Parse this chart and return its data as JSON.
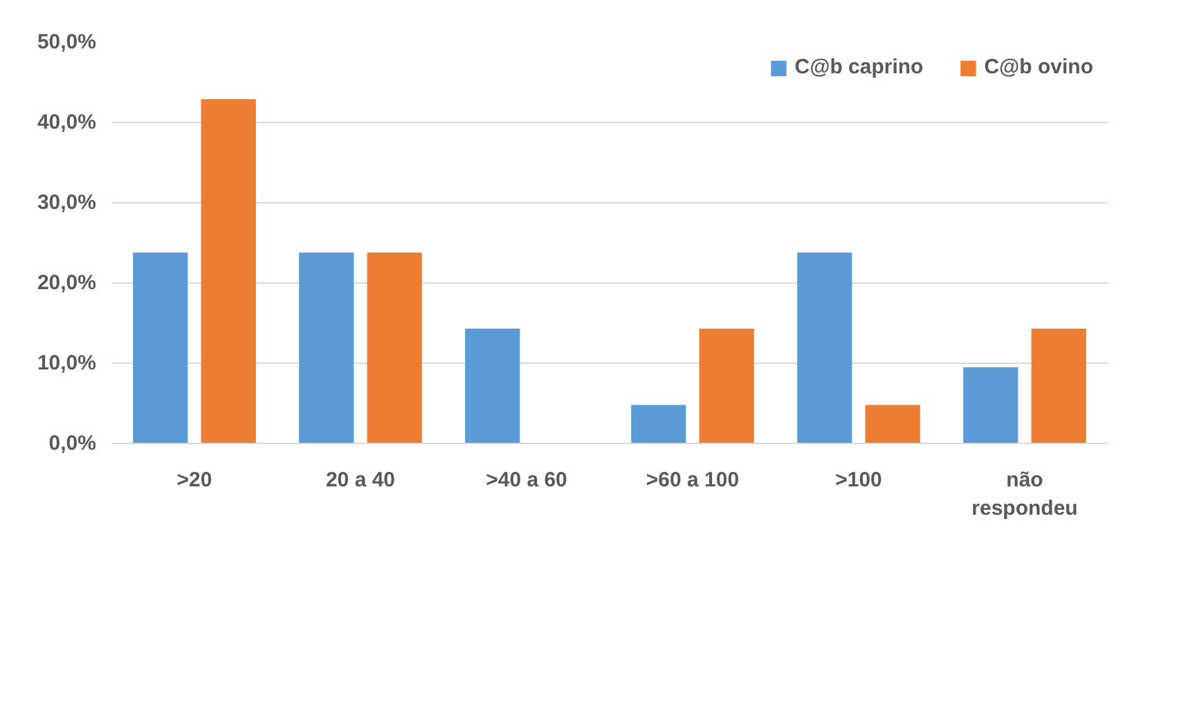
{
  "chart_data": {
    "type": "bar",
    "categories": [
      ">20",
      "20 a 40",
      ">40 a 60",
      ">60 a 100",
      ">100",
      "não\nrespondeu"
    ],
    "series": [
      {
        "name": "C@b caprino",
        "color": "#5b9bd5",
        "values": [
          23.8,
          23.8,
          14.3,
          4.8,
          23.8,
          9.5
        ]
      },
      {
        "name": "C@b ovino",
        "color": "#ed7d31",
        "values": [
          42.9,
          23.8,
          0,
          14.3,
          4.8,
          14.3
        ]
      }
    ],
    "ylim": [
      0,
      50
    ],
    "yticks": [
      {
        "value": 0,
        "label": "0,0%"
      },
      {
        "value": 10,
        "label": "10,0%"
      },
      {
        "value": 20,
        "label": "20,0%"
      },
      {
        "value": 30,
        "label": "30,0%"
      },
      {
        "value": 40,
        "label": "40,0%"
      },
      {
        "value": 50,
        "label": "50,0%"
      }
    ],
    "grid": "y",
    "legend": "top right"
  }
}
